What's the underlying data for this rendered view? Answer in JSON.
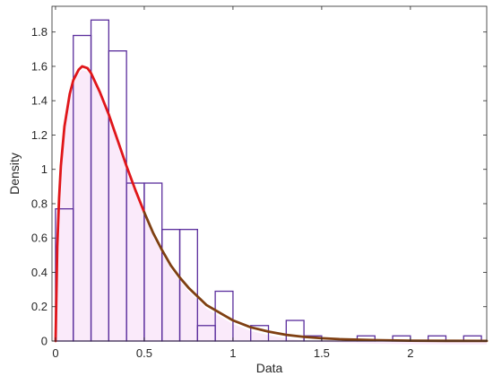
{
  "chart_data": {
    "type": "bar",
    "title": "",
    "xlabel": "Data",
    "ylabel": "Density",
    "xlim": [
      -0.02,
      2.43
    ],
    "ylim": [
      0,
      1.95
    ],
    "grid": false,
    "x_ticks": [
      0,
      0.5,
      1,
      1.5,
      2
    ],
    "x_tick_labels": [
      "0",
      "0.5",
      "1",
      "1.5",
      "2"
    ],
    "y_ticks": [
      0,
      0.2,
      0.4,
      0.6,
      0.8,
      1,
      1.2,
      1.4,
      1.6,
      1.8
    ],
    "y_tick_labels": [
      "0",
      "0.2",
      "0.4",
      "0.6",
      "0.8",
      "1",
      "1.2",
      "1.4",
      "1.6",
      "1.8"
    ],
    "histogram": {
      "bin_edges": [
        0,
        0.1,
        0.2,
        0.3,
        0.4,
        0.5,
        0.6,
        0.7,
        0.8,
        0.9,
        1.0,
        1.1,
        1.2,
        1.3,
        1.4,
        1.5,
        1.6,
        1.7,
        1.8,
        1.9,
        2.0,
        2.1,
        2.2,
        2.3,
        2.4
      ],
      "density": [
        0.77,
        1.78,
        1.87,
        1.69,
        0.92,
        0.92,
        0.65,
        0.65,
        0.09,
        0.29,
        0.0,
        0.09,
        0.0,
        0.12,
        0.03,
        0.0,
        0.0,
        0.03,
        0.0,
        0.03,
        0.0,
        0.03,
        0.0,
        0.03
      ],
      "edge_color": "#5a2d9c",
      "face_color": "none"
    },
    "fitted_curve": {
      "x": [
        0.0,
        0.01,
        0.02,
        0.03,
        0.05,
        0.08,
        0.1,
        0.13,
        0.15,
        0.18,
        0.2,
        0.25,
        0.3,
        0.35,
        0.4,
        0.45,
        0.5,
        0.55,
        0.6,
        0.65,
        0.7,
        0.75,
        0.8,
        0.85,
        0.9,
        0.95,
        1.0,
        1.1,
        1.2,
        1.3,
        1.4,
        1.5,
        1.6,
        1.8,
        2.0,
        2.2,
        2.43
      ],
      "y": [
        0.0,
        0.55,
        0.83,
        1.02,
        1.25,
        1.44,
        1.52,
        1.58,
        1.6,
        1.59,
        1.56,
        1.45,
        1.32,
        1.17,
        1.02,
        0.88,
        0.75,
        0.63,
        0.53,
        0.44,
        0.37,
        0.31,
        0.26,
        0.21,
        0.18,
        0.15,
        0.12,
        0.08,
        0.055,
        0.036,
        0.024,
        0.016,
        0.011,
        0.005,
        0.002,
        0.001,
        0.0005
      ],
      "color_upper": "#e0161a",
      "color_lower": "#7f3f12"
    },
    "shadow_color": "#f6dcf6"
  }
}
